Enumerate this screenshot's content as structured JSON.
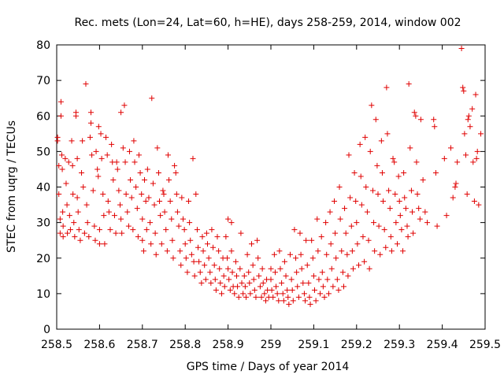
{
  "chart_data": {
    "type": "scatter",
    "title": "Rec. mets (Lon=24, Lat=60, h=HE), days 258-259, 2014, window 002",
    "xlabel": "GPS time / Days of year 2014",
    "ylabel": "STEC from uqrg / TECUs",
    "xlim": [
      258.5,
      259.5
    ],
    "ylim": [
      0,
      80
    ],
    "xticks": [
      "258.5",
      "258.6",
      "258.7",
      "258.8",
      "258.9",
      "259",
      "259.1",
      "259.2",
      "259.3",
      "259.4",
      "259.5"
    ],
    "yticks": [
      "0",
      "10",
      "20",
      "30",
      "40",
      "50",
      "60",
      "70",
      "80"
    ],
    "grid": false,
    "marker": "+",
    "color": "#e00000",
    "points": [
      [
        258.502,
        54
      ],
      [
        258.502,
        53
      ],
      [
        258.505,
        46
      ],
      [
        258.505,
        38
      ],
      [
        258.508,
        31
      ],
      [
        258.508,
        27
      ],
      [
        258.51,
        64
      ],
      [
        258.51,
        60
      ],
      [
        258.512,
        49
      ],
      [
        258.513,
        45
      ],
      [
        258.514,
        33
      ],
      [
        258.515,
        29
      ],
      [
        258.515,
        26
      ],
      [
        258.52,
        48
      ],
      [
        258.522,
        41
      ],
      [
        258.524,
        35
      ],
      [
        258.525,
        27
      ],
      [
        258.528,
        47
      ],
      [
        258.53,
        32
      ],
      [
        258.532,
        28
      ],
      [
        258.535,
        53
      ],
      [
        258.537,
        46
      ],
      [
        258.538,
        38
      ],
      [
        258.54,
        30
      ],
      [
        258.542,
        26
      ],
      [
        258.545,
        61
      ],
      [
        258.545,
        60
      ],
      [
        258.548,
        48
      ],
      [
        258.548,
        37
      ],
      [
        258.55,
        33
      ],
      [
        258.552,
        28
      ],
      [
        258.555,
        25
      ],
      [
        258.558,
        44
      ],
      [
        258.56,
        53
      ],
      [
        258.562,
        40
      ],
      [
        258.565,
        27
      ],
      [
        258.568,
        69
      ],
      [
        258.57,
        35
      ],
      [
        258.572,
        30
      ],
      [
        258.575,
        26
      ],
      [
        258.578,
        54
      ],
      [
        258.58,
        58
      ],
      [
        258.58,
        61
      ],
      [
        258.582,
        49
      ],
      [
        258.585,
        39
      ],
      [
        258.588,
        29
      ],
      [
        258.59,
        25
      ],
      [
        258.592,
        50
      ],
      [
        258.595,
        45
      ],
      [
        258.597,
        43
      ],
      [
        258.598,
        57
      ],
      [
        258.6,
        28
      ],
      [
        258.6,
        24
      ],
      [
        258.603,
        55
      ],
      [
        258.605,
        48
      ],
      [
        258.608,
        38
      ],
      [
        258.61,
        32
      ],
      [
        258.612,
        24
      ],
      [
        258.615,
        54
      ],
      [
        258.618,
        49
      ],
      [
        258.62,
        36
      ],
      [
        258.622,
        33
      ],
      [
        258.625,
        28
      ],
      [
        258.628,
        52
      ],
      [
        258.63,
        47
      ],
      [
        258.632,
        42
      ],
      [
        258.635,
        32
      ],
      [
        258.638,
        27
      ],
      [
        258.64,
        47
      ],
      [
        258.642,
        45
      ],
      [
        258.645,
        39
      ],
      [
        258.648,
        35
      ],
      [
        258.65,
        61
      ],
      [
        258.65,
        31
      ],
      [
        258.652,
        27
      ],
      [
        258.655,
        51
      ],
      [
        258.658,
        63
      ],
      [
        258.66,
        47
      ],
      [
        258.662,
        38
      ],
      [
        258.665,
        33
      ],
      [
        258.668,
        29
      ],
      [
        258.67,
        50
      ],
      [
        258.672,
        42
      ],
      [
        258.675,
        37
      ],
      [
        258.678,
        28
      ],
      [
        258.68,
        53
      ],
      [
        258.682,
        47
      ],
      [
        258.685,
        40
      ],
      [
        258.688,
        34
      ],
      [
        258.69,
        26
      ],
      [
        258.692,
        49
      ],
      [
        258.695,
        44
      ],
      [
        258.698,
        38
      ],
      [
        258.7,
        31
      ],
      [
        258.7,
        25
      ],
      [
        258.703,
        22
      ],
      [
        258.705,
        42
      ],
      [
        258.708,
        36
      ],
      [
        258.71,
        28
      ],
      [
        258.712,
        45
      ],
      [
        258.715,
        37
      ],
      [
        258.718,
        30
      ],
      [
        258.72,
        24
      ],
      [
        258.722,
        65
      ],
      [
        258.725,
        41
      ],
      [
        258.728,
        35
      ],
      [
        258.73,
        27
      ],
      [
        258.732,
        21
      ],
      [
        258.735,
        51
      ],
      [
        258.738,
        44
      ],
      [
        258.74,
        36
      ],
      [
        258.742,
        32
      ],
      [
        258.745,
        24
      ],
      [
        258.748,
        39
      ],
      [
        258.75,
        38
      ],
      [
        258.752,
        33
      ],
      [
        258.755,
        28
      ],
      [
        258.758,
        22
      ],
      [
        258.76,
        49
      ],
      [
        258.762,
        42
      ],
      [
        258.765,
        36
      ],
      [
        258.768,
        31
      ],
      [
        258.77,
        25
      ],
      [
        258.772,
        20
      ],
      [
        258.775,
        46
      ],
      [
        258.778,
        44
      ],
      [
        258.78,
        38
      ],
      [
        258.782,
        33
      ],
      [
        258.785,
        29
      ],
      [
        258.788,
        22
      ],
      [
        258.79,
        18
      ],
      [
        258.792,
        37
      ],
      [
        258.795,
        31
      ],
      [
        258.798,
        28
      ],
      [
        258.8,
        24
      ],
      [
        258.802,
        20
      ],
      [
        258.805,
        16
      ],
      [
        258.808,
        36
      ],
      [
        258.81,
        30
      ],
      [
        258.812,
        25
      ],
      [
        258.815,
        21
      ],
      [
        258.818,
        48
      ],
      [
        258.82,
        19
      ],
      [
        258.822,
        15
      ],
      [
        258.825,
        38
      ],
      [
        258.828,
        28
      ],
      [
        258.83,
        23
      ],
      [
        258.832,
        19
      ],
      [
        258.835,
        16
      ],
      [
        258.838,
        13
      ],
      [
        258.84,
        26
      ],
      [
        258.842,
        22
      ],
      [
        258.845,
        18
      ],
      [
        258.848,
        14
      ],
      [
        258.85,
        27
      ],
      [
        258.852,
        24
      ],
      [
        258.855,
        20
      ],
      [
        258.858,
        16
      ],
      [
        258.86,
        13
      ],
      [
        258.862,
        28
      ],
      [
        258.865,
        23
      ],
      [
        258.868,
        18
      ],
      [
        258.87,
        14
      ],
      [
        258.872,
        11
      ],
      [
        258.875,
        26
      ],
      [
        258.878,
        22
      ],
      [
        258.88,
        17
      ],
      [
        258.882,
        13
      ],
      [
        258.885,
        10
      ],
      [
        258.888,
        20
      ],
      [
        258.89,
        15
      ],
      [
        258.892,
        12
      ],
      [
        258.895,
        26
      ],
      [
        258.898,
        20
      ],
      [
        258.9,
        31
      ],
      [
        258.9,
        17
      ],
      [
        258.902,
        14
      ],
      [
        258.905,
        11
      ],
      [
        258.908,
        30
      ],
      [
        258.908,
        22
      ],
      [
        258.91,
        16
      ],
      [
        258.912,
        12
      ],
      [
        258.915,
        10
      ],
      [
        258.918,
        19
      ],
      [
        258.92,
        15
      ],
      [
        258.922,
        12
      ],
      [
        258.925,
        9
      ],
      [
        258.928,
        17
      ],
      [
        258.93,
        27
      ],
      [
        258.932,
        13
      ],
      [
        258.935,
        10
      ],
      [
        258.938,
        15
      ],
      [
        258.94,
        12
      ],
      [
        258.942,
        9
      ],
      [
        258.945,
        21
      ],
      [
        258.948,
        16
      ],
      [
        258.95,
        13
      ],
      [
        258.952,
        10
      ],
      [
        258.955,
        24
      ],
      [
        258.958,
        18
      ],
      [
        258.96,
        14
      ],
      [
        258.962,
        11
      ],
      [
        258.965,
        9
      ],
      [
        258.968,
        25
      ],
      [
        258.97,
        20
      ],
      [
        258.972,
        15
      ],
      [
        258.975,
        12
      ],
      [
        258.978,
        9
      ],
      [
        258.98,
        17
      ],
      [
        258.982,
        13
      ],
      [
        258.985,
        10
      ],
      [
        258.988,
        8
      ],
      [
        258.99,
        14
      ],
      [
        258.992,
        11
      ],
      [
        258.995,
        9
      ],
      [
        259.0,
        17
      ],
      [
        259.0,
        14
      ],
      [
        259.002,
        11
      ],
      [
        259.005,
        9
      ],
      [
        259.008,
        21
      ],
      [
        259.01,
        16
      ],
      [
        259.012,
        12
      ],
      [
        259.015,
        10
      ],
      [
        259.018,
        8
      ],
      [
        259.02,
        22
      ],
      [
        259.022,
        17
      ],
      [
        259.025,
        13
      ],
      [
        259.028,
        10
      ],
      [
        259.03,
        8
      ],
      [
        259.032,
        19
      ],
      [
        259.035,
        15
      ],
      [
        259.038,
        11
      ],
      [
        259.04,
        9
      ],
      [
        259.042,
        7
      ],
      [
        259.045,
        21
      ],
      [
        259.048,
        14
      ],
      [
        259.05,
        11
      ],
      [
        259.052,
        8
      ],
      [
        259.055,
        28
      ],
      [
        259.058,
        20
      ],
      [
        259.06,
        16
      ],
      [
        259.062,
        12
      ],
      [
        259.065,
        9
      ],
      [
        259.068,
        27
      ],
      [
        259.07,
        21
      ],
      [
        259.072,
        17
      ],
      [
        259.075,
        13
      ],
      [
        259.078,
        10
      ],
      [
        259.08,
        8
      ],
      [
        259.082,
        25
      ],
      [
        259.085,
        18
      ],
      [
        259.088,
        13
      ],
      [
        259.09,
        9
      ],
      [
        259.092,
        7
      ],
      [
        259.095,
        25
      ],
      [
        259.098,
        20
      ],
      [
        259.1,
        15
      ],
      [
        259.102,
        11
      ],
      [
        259.105,
        8
      ],
      [
        259.108,
        31
      ],
      [
        259.11,
        22
      ],
      [
        259.112,
        14
      ],
      [
        259.115,
        10
      ],
      [
        259.118,
        26
      ],
      [
        259.12,
        16
      ],
      [
        259.122,
        12
      ],
      [
        259.125,
        9
      ],
      [
        259.128,
        30
      ],
      [
        259.13,
        21
      ],
      [
        259.132,
        14
      ],
      [
        259.135,
        10
      ],
      [
        259.138,
        33
      ],
      [
        259.14,
        24
      ],
      [
        259.142,
        17
      ],
      [
        259.145,
        12
      ],
      [
        259.148,
        36
      ],
      [
        259.15,
        27
      ],
      [
        259.152,
        20
      ],
      [
        259.155,
        14
      ],
      [
        259.158,
        11
      ],
      [
        259.16,
        40
      ],
      [
        259.162,
        31
      ],
      [
        259.165,
        22
      ],
      [
        259.168,
        16
      ],
      [
        259.17,
        12
      ],
      [
        259.172,
        34
      ],
      [
        259.175,
        27
      ],
      [
        259.178,
        21
      ],
      [
        259.18,
        15
      ],
      [
        259.182,
        49
      ],
      [
        259.185,
        37
      ],
      [
        259.188,
        29
      ],
      [
        259.19,
        22
      ],
      [
        259.192,
        17
      ],
      [
        259.195,
        44
      ],
      [
        259.198,
        36
      ],
      [
        259.2,
        30
      ],
      [
        259.202,
        24
      ],
      [
        259.205,
        18
      ],
      [
        259.208,
        52
      ],
      [
        259.21,
        43
      ],
      [
        259.212,
        35
      ],
      [
        259.215,
        26
      ],
      [
        259.218,
        19
      ],
      [
        259.22,
        54
      ],
      [
        259.222,
        40
      ],
      [
        259.225,
        33
      ],
      [
        259.228,
        25
      ],
      [
        259.23,
        17
      ],
      [
        259.232,
        50
      ],
      [
        259.235,
        63
      ],
      [
        259.238,
        39
      ],
      [
        259.24,
        30
      ],
      [
        259.242,
        22
      ],
      [
        259.245,
        59
      ],
      [
        259.248,
        46
      ],
      [
        259.25,
        38
      ],
      [
        259.252,
        29
      ],
      [
        259.255,
        21
      ],
      [
        259.258,
        53
      ],
      [
        259.26,
        44
      ],
      [
        259.262,
        36
      ],
      [
        259.265,
        28
      ],
      [
        259.268,
        23
      ],
      [
        259.27,
        68
      ],
      [
        259.272,
        55
      ],
      [
        259.275,
        39
      ],
      [
        259.278,
        34
      ],
      [
        259.28,
        26
      ],
      [
        259.282,
        22
      ],
      [
        259.285,
        48
      ],
      [
        259.288,
        47
      ],
      [
        259.29,
        38
      ],
      [
        259.292,
        30
      ],
      [
        259.295,
        24
      ],
      [
        259.298,
        43
      ],
      [
        259.3,
        36
      ],
      [
        259.302,
        32
      ],
      [
        259.305,
        28
      ],
      [
        259.308,
        22
      ],
      [
        259.31,
        44
      ],
      [
        259.312,
        37
      ],
      [
        259.315,
        34
      ],
      [
        259.318,
        29
      ],
      [
        259.32,
        26
      ],
      [
        259.322,
        69
      ],
      [
        259.325,
        51
      ],
      [
        259.328,
        39
      ],
      [
        259.33,
        33
      ],
      [
        259.332,
        27
      ],
      [
        259.335,
        61
      ],
      [
        259.338,
        60
      ],
      [
        259.34,
        47
      ],
      [
        259.342,
        38
      ],
      [
        259.345,
        34
      ],
      [
        259.348,
        31
      ],
      [
        259.35,
        59
      ],
      [
        259.355,
        42
      ],
      [
        259.36,
        33
      ],
      [
        259.365,
        30
      ],
      [
        259.38,
        59
      ],
      [
        259.382,
        57
      ],
      [
        259.385,
        44
      ],
      [
        259.388,
        29
      ],
      [
        259.405,
        48
      ],
      [
        259.41,
        32
      ],
      [
        259.42,
        51
      ],
      [
        259.425,
        37
      ],
      [
        259.43,
        40
      ],
      [
        259.432,
        41
      ],
      [
        259.435,
        47
      ],
      [
        259.445,
        79
      ],
      [
        259.448,
        68
      ],
      [
        259.45,
        67
      ],
      [
        259.452,
        55
      ],
      [
        259.455,
        49
      ],
      [
        259.458,
        38
      ],
      [
        259.46,
        59
      ],
      [
        259.462,
        60
      ],
      [
        259.465,
        57
      ],
      [
        259.47,
        62
      ],
      [
        259.472,
        47
      ],
      [
        259.475,
        36
      ],
      [
        259.478,
        66
      ],
      [
        259.48,
        48
      ],
      [
        259.482,
        50
      ],
      [
        259.485,
        35
      ],
      [
        259.49,
        55
      ]
    ]
  }
}
